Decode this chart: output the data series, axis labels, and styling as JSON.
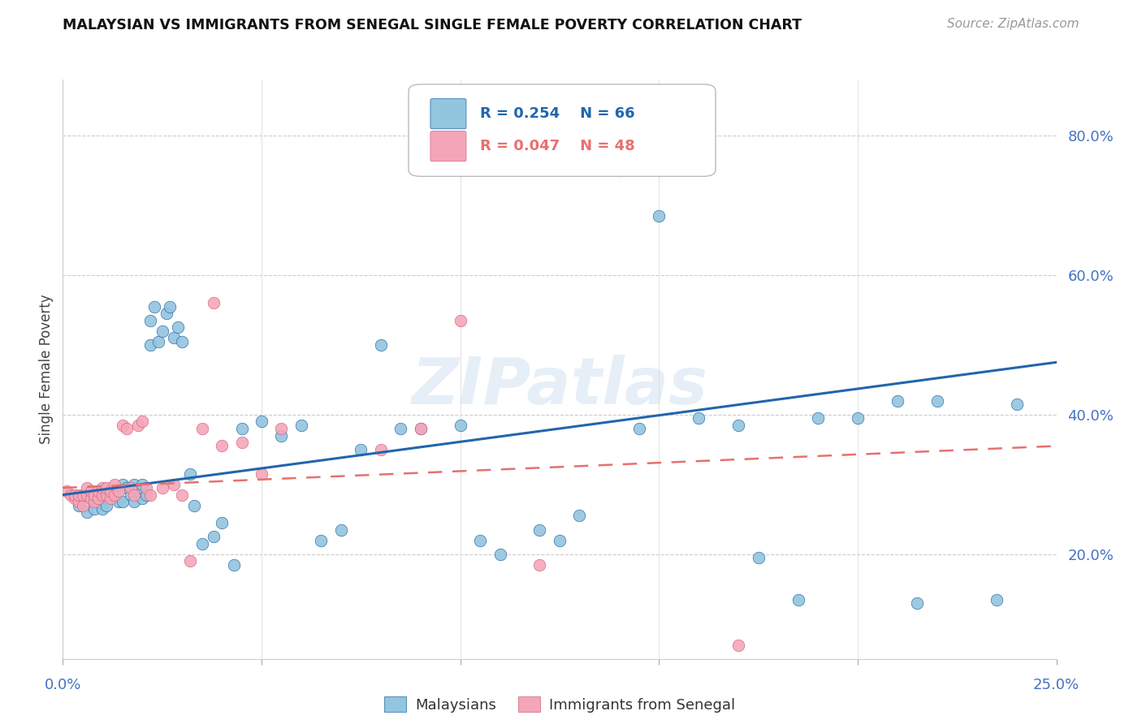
{
  "title": "MALAYSIAN VS IMMIGRANTS FROM SENEGAL SINGLE FEMALE POVERTY CORRELATION CHART",
  "source": "Source: ZipAtlas.com",
  "ylabel": "Single Female Poverty",
  "yticks": [
    0.2,
    0.4,
    0.6,
    0.8
  ],
  "ytick_labels": [
    "20.0%",
    "40.0%",
    "60.0%",
    "80.0%"
  ],
  "xlim": [
    0.0,
    0.25
  ],
  "ylim": [
    0.05,
    0.88
  ],
  "legend_label_blue": "Malaysians",
  "legend_label_pink": "Immigrants from Senegal",
  "blue_color": "#92c5de",
  "pink_color": "#f4a6b8",
  "trendline_blue_color": "#2166ac",
  "trendline_pink_color": "#e87070",
  "watermark": "ZIPatlas",
  "blue_scatter_x": [
    0.004,
    0.006,
    0.007,
    0.008,
    0.009,
    0.01,
    0.011,
    0.012,
    0.013,
    0.014,
    0.015,
    0.015,
    0.016,
    0.017,
    0.018,
    0.018,
    0.019,
    0.02,
    0.02,
    0.021,
    0.022,
    0.022,
    0.023,
    0.024,
    0.025,
    0.026,
    0.027,
    0.028,
    0.029,
    0.03,
    0.032,
    0.033,
    0.035,
    0.038,
    0.04,
    0.043,
    0.045,
    0.05,
    0.055,
    0.06,
    0.065,
    0.07,
    0.075,
    0.08,
    0.085,
    0.09,
    0.1,
    0.105,
    0.11,
    0.12,
    0.125,
    0.13,
    0.14,
    0.145,
    0.15,
    0.16,
    0.17,
    0.175,
    0.185,
    0.19,
    0.2,
    0.21,
    0.215,
    0.22,
    0.235,
    0.24
  ],
  "blue_scatter_y": [
    0.27,
    0.26,
    0.285,
    0.265,
    0.275,
    0.265,
    0.27,
    0.285,
    0.285,
    0.275,
    0.275,
    0.3,
    0.295,
    0.285,
    0.275,
    0.3,
    0.29,
    0.28,
    0.3,
    0.285,
    0.5,
    0.535,
    0.555,
    0.505,
    0.52,
    0.545,
    0.555,
    0.51,
    0.525,
    0.505,
    0.315,
    0.27,
    0.215,
    0.225,
    0.245,
    0.185,
    0.38,
    0.39,
    0.37,
    0.385,
    0.22,
    0.235,
    0.35,
    0.5,
    0.38,
    0.38,
    0.385,
    0.22,
    0.2,
    0.235,
    0.22,
    0.255,
    0.75,
    0.38,
    0.685,
    0.395,
    0.385,
    0.195,
    0.135,
    0.395,
    0.395,
    0.42,
    0.13,
    0.42,
    0.135,
    0.415
  ],
  "pink_scatter_x": [
    0.001,
    0.002,
    0.003,
    0.003,
    0.004,
    0.004,
    0.005,
    0.005,
    0.006,
    0.006,
    0.007,
    0.007,
    0.008,
    0.008,
    0.009,
    0.009,
    0.01,
    0.01,
    0.011,
    0.011,
    0.012,
    0.012,
    0.013,
    0.013,
    0.014,
    0.015,
    0.016,
    0.017,
    0.018,
    0.019,
    0.02,
    0.021,
    0.022,
    0.025,
    0.028,
    0.03,
    0.032,
    0.035,
    0.038,
    0.04,
    0.045,
    0.05,
    0.055,
    0.08,
    0.09,
    0.1,
    0.12,
    0.17
  ],
  "pink_scatter_y": [
    0.29,
    0.285,
    0.28,
    0.285,
    0.275,
    0.285,
    0.27,
    0.285,
    0.285,
    0.295,
    0.28,
    0.29,
    0.275,
    0.285,
    0.28,
    0.29,
    0.285,
    0.295,
    0.285,
    0.295,
    0.28,
    0.29,
    0.285,
    0.3,
    0.29,
    0.385,
    0.38,
    0.295,
    0.285,
    0.385,
    0.39,
    0.295,
    0.285,
    0.295,
    0.3,
    0.285,
    0.19,
    0.38,
    0.56,
    0.355,
    0.36,
    0.315,
    0.38,
    0.35,
    0.38,
    0.535,
    0.185,
    0.07
  ],
  "blue_trend_x": [
    0.0,
    0.25
  ],
  "blue_trend_y": [
    0.285,
    0.475
  ],
  "pink_trend_x": [
    0.0,
    0.25
  ],
  "pink_trend_y": [
    0.295,
    0.355
  ]
}
